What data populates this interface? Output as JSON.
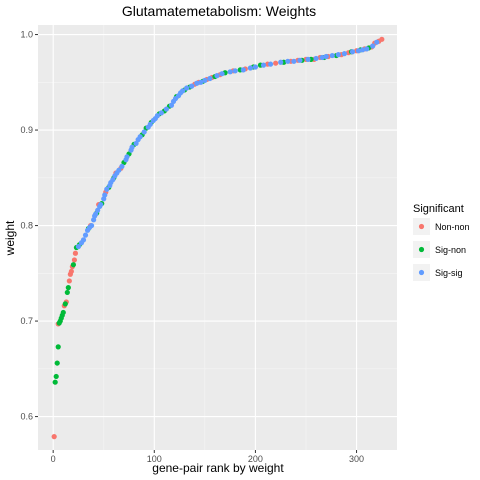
{
  "chart_data": {
    "type": "scatter",
    "title": "Glutamatemetabolism: Weights",
    "xlabel": "gene-pair rank by weight",
    "ylabel": "weight",
    "xlim": [
      -15,
      340
    ],
    "ylim": [
      0.565,
      1.01
    ],
    "x_ticks": [
      0,
      100,
      200,
      300
    ],
    "y_ticks": [
      0.6,
      0.7,
      0.8,
      0.9,
      1.0
    ],
    "y_tick_labels": [
      "0.6",
      "0.7",
      "0.8",
      "0.9",
      "1.0"
    ],
    "grid": true,
    "legend_position": "right",
    "legend_title": "Significant",
    "series": [
      {
        "name": "Non-non",
        "color": "#F8766D",
        "points": [
          [
            1,
            0.579
          ],
          [
            5,
            0.697
          ],
          [
            11,
            0.716
          ],
          [
            13,
            0.72
          ],
          [
            16,
            0.742
          ],
          [
            17,
            0.749
          ],
          [
            18,
            0.752
          ],
          [
            19,
            0.757
          ],
          [
            21,
            0.764
          ],
          [
            22,
            0.771
          ],
          [
            37,
            0.8
          ],
          [
            45,
            0.822
          ],
          [
            52,
            0.835
          ],
          [
            62,
            0.855
          ],
          [
            67,
            0.86
          ],
          [
            140,
            0.948
          ],
          [
            144,
            0.95
          ],
          [
            152,
            0.953
          ],
          [
            157,
            0.955
          ],
          [
            165,
            0.958
          ],
          [
            178,
            0.962
          ],
          [
            190,
            0.964
          ],
          [
            212,
            0.969
          ],
          [
            220,
            0.97
          ],
          [
            235,
            0.972
          ],
          [
            242,
            0.973
          ],
          [
            250,
            0.974
          ],
          [
            258,
            0.974
          ],
          [
            264,
            0.976
          ],
          [
            272,
            0.977
          ],
          [
            285,
            0.979
          ],
          [
            292,
            0.981
          ],
          [
            300,
            0.983
          ],
          [
            308,
            0.985
          ],
          [
            315,
            0.987
          ],
          [
            318,
            0.991
          ],
          [
            322,
            0.993
          ],
          [
            325,
            0.995
          ]
        ]
      },
      {
        "name": "Sig-non",
        "color": "#00BA38",
        "points": [
          [
            2,
            0.636
          ],
          [
            3,
            0.642
          ],
          [
            4,
            0.656
          ],
          [
            5,
            0.673
          ],
          [
            6,
            0.698
          ],
          [
            7,
            0.7
          ],
          [
            8,
            0.703
          ],
          [
            9,
            0.706
          ],
          [
            10,
            0.709
          ],
          [
            12,
            0.718
          ],
          [
            14,
            0.73
          ],
          [
            15,
            0.735
          ],
          [
            20,
            0.759
          ],
          [
            23,
            0.777
          ],
          [
            26,
            0.78
          ],
          [
            35,
            0.797
          ],
          [
            43,
            0.813
          ],
          [
            48,
            0.823
          ],
          [
            55,
            0.84
          ],
          [
            60,
            0.85
          ],
          [
            70,
            0.866
          ],
          [
            75,
            0.875
          ],
          [
            80,
            0.885
          ],
          [
            88,
            0.895
          ],
          [
            92,
            0.902
          ],
          [
            97,
            0.908
          ],
          [
            105,
            0.917
          ],
          [
            110,
            0.92
          ],
          [
            115,
            0.925
          ],
          [
            122,
            0.935
          ],
          [
            130,
            0.942
          ],
          [
            135,
            0.945
          ],
          [
            148,
            0.951
          ],
          [
            160,
            0.956
          ],
          [
            170,
            0.96
          ],
          [
            185,
            0.963
          ],
          [
            198,
            0.966
          ],
          [
            205,
            0.968
          ],
          [
            228,
            0.971
          ],
          [
            246,
            0.973
          ],
          [
            255,
            0.974
          ],
          [
            268,
            0.976
          ],
          [
            280,
            0.978
          ],
          [
            295,
            0.982
          ],
          [
            304,
            0.984
          ],
          [
            312,
            0.986
          ]
        ]
      },
      {
        "name": "Sig-sig",
        "color": "#619CFF",
        "points": [
          [
            25,
            0.778
          ],
          [
            28,
            0.782
          ],
          [
            30,
            0.785
          ],
          [
            32,
            0.79
          ],
          [
            34,
            0.795
          ],
          [
            36,
            0.798
          ],
          [
            38,
            0.8
          ],
          [
            40,
            0.806
          ],
          [
            41,
            0.81
          ],
          [
            42,
            0.812
          ],
          [
            44,
            0.816
          ],
          [
            46,
            0.82
          ],
          [
            47,
            0.822
          ],
          [
            50,
            0.828
          ],
          [
            51,
            0.832
          ],
          [
            53,
            0.838
          ],
          [
            56,
            0.842
          ],
          [
            57,
            0.845
          ],
          [
            59,
            0.848
          ],
          [
            61,
            0.852
          ],
          [
            63,
            0.855
          ],
          [
            65,
            0.858
          ],
          [
            68,
            0.862
          ],
          [
            72,
            0.869
          ],
          [
            73,
            0.872
          ],
          [
            77,
            0.879
          ],
          [
            78,
            0.882
          ],
          [
            82,
            0.886
          ],
          [
            84,
            0.89
          ],
          [
            86,
            0.893
          ],
          [
            90,
            0.898
          ],
          [
            94,
            0.903
          ],
          [
            96,
            0.906
          ],
          [
            99,
            0.91
          ],
          [
            101,
            0.912
          ],
          [
            103,
            0.915
          ],
          [
            107,
            0.918
          ],
          [
            112,
            0.922
          ],
          [
            117,
            0.926
          ],
          [
            119,
            0.93
          ],
          [
            121,
            0.933
          ],
          [
            124,
            0.936
          ],
          [
            126,
            0.939
          ],
          [
            128,
            0.941
          ],
          [
            132,
            0.944
          ],
          [
            137,
            0.946
          ],
          [
            142,
            0.949
          ],
          [
            146,
            0.95
          ],
          [
            150,
            0.952
          ],
          [
            155,
            0.954
          ],
          [
            162,
            0.957
          ],
          [
            167,
            0.959
          ],
          [
            175,
            0.961
          ],
          [
            180,
            0.962
          ],
          [
            188,
            0.963
          ],
          [
            195,
            0.965
          ],
          [
            200,
            0.966
          ],
          [
            208,
            0.968
          ],
          [
            215,
            0.969
          ],
          [
            225,
            0.971
          ],
          [
            232,
            0.972
          ],
          [
            238,
            0.972
          ],
          [
            244,
            0.973
          ],
          [
            252,
            0.974
          ],
          [
            260,
            0.975
          ],
          [
            266,
            0.976
          ],
          [
            270,
            0.977
          ],
          [
            276,
            0.978
          ],
          [
            282,
            0.979
          ],
          [
            288,
            0.98
          ],
          [
            296,
            0.982
          ],
          [
            302,
            0.983
          ],
          [
            306,
            0.984
          ],
          [
            310,
            0.985
          ],
          [
            316,
            0.988
          ],
          [
            320,
            0.992
          ]
        ]
      }
    ]
  }
}
